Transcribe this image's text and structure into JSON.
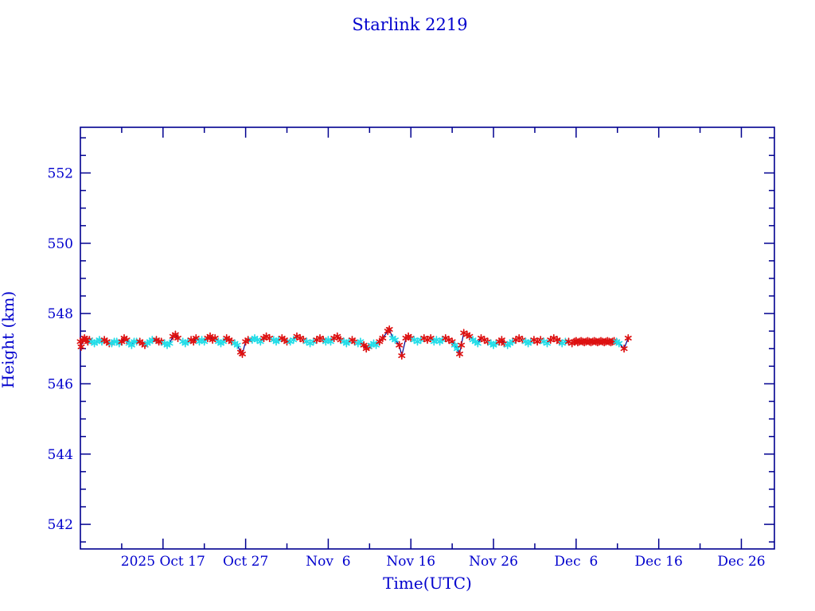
{
  "page": {
    "background_color": "#ffffff"
  },
  "chart_data": {
    "type": "line",
    "title": "Starlink 2219",
    "xlabel": "Time(UTC)",
    "ylabel": "Height (km)",
    "x_axis_note": "days since 2025 Oct 7 00:00 UTC",
    "xlim": [
      0,
      84
    ],
    "ylim": [
      541.3,
      553.3
    ],
    "grid": false,
    "legend": "none",
    "x_major_ticks": [
      {
        "t": 10,
        "label": "2025 Oct 17"
      },
      {
        "t": 20,
        "label": "Oct 27"
      },
      {
        "t": 30,
        "label": "Nov  6"
      },
      {
        "t": 40,
        "label": "Nov 16"
      },
      {
        "t": 50,
        "label": "Nov 26"
      },
      {
        "t": 60,
        "label": "Dec  6"
      },
      {
        "t": 70,
        "label": "Dec 16"
      },
      {
        "t": 80,
        "label": "Dec 26"
      }
    ],
    "x_minor_step_days": 5,
    "y_major_ticks": [
      542,
      544,
      546,
      548,
      550,
      552
    ],
    "y_minor_step": 0.5,
    "colors": {
      "axis": "#000090",
      "text": "#0000cd",
      "line": "#00008b",
      "marker_red": "#dd1111",
      "marker_cyan": "#22dde8"
    },
    "marker_glyph": "asterisk",
    "series_legend": [
      {
        "name": "height-obs-red",
        "color": "#dd1111"
      },
      {
        "name": "height-obs-cyan",
        "color": "#22dde8"
      }
    ],
    "points": [
      [
        0.0,
        547.2,
        "r"
      ],
      [
        0.1,
        547.05,
        "r"
      ],
      [
        0.3,
        547.25,
        "r"
      ],
      [
        0.5,
        547.3,
        "r"
      ],
      [
        0.7,
        547.25,
        "r"
      ],
      [
        0.9,
        547.2,
        "r"
      ],
      [
        1.1,
        547.25,
        "r"
      ],
      [
        1.4,
        547.2,
        "c"
      ],
      [
        1.7,
        547.15,
        "c"
      ],
      [
        2.0,
        547.2,
        "c"
      ],
      [
        2.3,
        547.25,
        "c"
      ],
      [
        2.6,
        547.2,
        "c"
      ],
      [
        2.9,
        547.25,
        "r"
      ],
      [
        3.2,
        547.2,
        "r"
      ],
      [
        3.5,
        547.15,
        "r"
      ],
      [
        3.8,
        547.15,
        "c"
      ],
      [
        4.1,
        547.2,
        "c"
      ],
      [
        4.4,
        547.2,
        "c"
      ],
      [
        4.7,
        547.15,
        "c"
      ],
      [
        5.0,
        547.2,
        "r"
      ],
      [
        5.3,
        547.3,
        "r"
      ],
      [
        5.6,
        547.25,
        "r"
      ],
      [
        5.9,
        547.15,
        "c"
      ],
      [
        6.2,
        547.1,
        "c"
      ],
      [
        6.5,
        547.2,
        "c"
      ],
      [
        6.8,
        547.2,
        "c"
      ],
      [
        7.2,
        547.2,
        "r"
      ],
      [
        7.5,
        547.15,
        "r"
      ],
      [
        7.8,
        547.1,
        "r"
      ],
      [
        8.1,
        547.15,
        "c"
      ],
      [
        8.4,
        547.2,
        "c"
      ],
      [
        8.7,
        547.25,
        "c"
      ],
      [
        9.2,
        547.25,
        "r"
      ],
      [
        9.5,
        547.2,
        "r"
      ],
      [
        9.8,
        547.2,
        "r"
      ],
      [
        10.2,
        547.15,
        "c"
      ],
      [
        10.5,
        547.1,
        "c"
      ],
      [
        10.8,
        547.15,
        "c"
      ],
      [
        11.2,
        547.35,
        "r"
      ],
      [
        11.5,
        547.4,
        "r"
      ],
      [
        11.8,
        547.3,
        "r"
      ],
      [
        12.4,
        547.2,
        "c"
      ],
      [
        12.7,
        547.15,
        "c"
      ],
      [
        13.0,
        547.2,
        "c"
      ],
      [
        13.4,
        547.25,
        "r"
      ],
      [
        13.7,
        547.2,
        "r"
      ],
      [
        14.0,
        547.3,
        "r"
      ],
      [
        14.4,
        547.2,
        "c"
      ],
      [
        14.7,
        547.25,
        "c"
      ],
      [
        15.0,
        547.2,
        "c"
      ],
      [
        15.4,
        547.3,
        "r"
      ],
      [
        15.7,
        547.35,
        "r"
      ],
      [
        16.0,
        547.25,
        "r"
      ],
      [
        16.3,
        547.3,
        "r"
      ],
      [
        16.7,
        547.2,
        "c"
      ],
      [
        17.0,
        547.15,
        "c"
      ],
      [
        17.3,
        547.2,
        "c"
      ],
      [
        17.7,
        547.3,
        "r"
      ],
      [
        18.0,
        547.25,
        "r"
      ],
      [
        18.3,
        547.2,
        "r"
      ],
      [
        18.7,
        547.15,
        "c"
      ],
      [
        19.0,
        547.1,
        "c"
      ],
      [
        19.4,
        546.9,
        "r"
      ],
      [
        19.6,
        546.85,
        "r"
      ],
      [
        20.0,
        547.2,
        "r"
      ],
      [
        20.3,
        547.25,
        "r"
      ],
      [
        20.8,
        547.25,
        "c"
      ],
      [
        21.1,
        547.3,
        "c"
      ],
      [
        21.4,
        547.25,
        "c"
      ],
      [
        21.8,
        547.2,
        "c"
      ],
      [
        22.2,
        547.3,
        "r"
      ],
      [
        22.5,
        547.35,
        "r"
      ],
      [
        22.9,
        547.3,
        "r"
      ],
      [
        23.4,
        547.25,
        "c"
      ],
      [
        23.7,
        547.2,
        "c"
      ],
      [
        24.0,
        547.25,
        "c"
      ],
      [
        24.4,
        547.3,
        "r"
      ],
      [
        24.7,
        547.25,
        "r"
      ],
      [
        25.0,
        547.2,
        "r"
      ],
      [
        25.4,
        547.2,
        "c"
      ],
      [
        25.8,
        547.25,
        "c"
      ],
      [
        26.2,
        547.35,
        "r"
      ],
      [
        26.6,
        547.3,
        "r"
      ],
      [
        27.0,
        547.25,
        "r"
      ],
      [
        27.4,
        547.2,
        "c"
      ],
      [
        27.8,
        547.15,
        "c"
      ],
      [
        28.2,
        547.2,
        "c"
      ],
      [
        28.6,
        547.25,
        "r"
      ],
      [
        29.0,
        547.3,
        "r"
      ],
      [
        29.4,
        547.25,
        "r"
      ],
      [
        29.7,
        547.2,
        "c"
      ],
      [
        30.0,
        547.25,
        "c"
      ],
      [
        30.3,
        547.2,
        "c"
      ],
      [
        30.7,
        547.3,
        "r"
      ],
      [
        31.1,
        547.35,
        "r"
      ],
      [
        31.5,
        547.25,
        "r"
      ],
      [
        31.9,
        547.2,
        "c"
      ],
      [
        32.2,
        547.15,
        "c"
      ],
      [
        32.5,
        547.2,
        "c"
      ],
      [
        32.9,
        547.25,
        "r"
      ],
      [
        33.2,
        547.2,
        "r"
      ],
      [
        33.6,
        547.15,
        "c"
      ],
      [
        33.9,
        547.2,
        "c"
      ],
      [
        34.3,
        547.1,
        "r"
      ],
      [
        34.6,
        547.0,
        "r"
      ],
      [
        34.9,
        547.05,
        "r"
      ],
      [
        35.2,
        547.1,
        "c"
      ],
      [
        35.5,
        547.15,
        "c"
      ],
      [
        35.8,
        547.1,
        "c"
      ],
      [
        36.2,
        547.2,
        "r"
      ],
      [
        36.6,
        547.3,
        "r"
      ],
      [
        37.2,
        547.5,
        "r"
      ],
      [
        37.4,
        547.55,
        "r"
      ],
      [
        37.8,
        547.3,
        "c"
      ],
      [
        38.1,
        547.25,
        "c"
      ],
      [
        38.6,
        547.1,
        "r"
      ],
      [
        38.9,
        546.8,
        "r"
      ],
      [
        39.4,
        547.3,
        "r"
      ],
      [
        39.7,
        547.35,
        "r"
      ],
      [
        40.0,
        547.3,
        "r"
      ],
      [
        40.4,
        547.25,
        "c"
      ],
      [
        40.8,
        547.2,
        "c"
      ],
      [
        41.2,
        547.25,
        "c"
      ],
      [
        41.6,
        547.3,
        "r"
      ],
      [
        42.0,
        547.25,
        "r"
      ],
      [
        42.4,
        547.3,
        "r"
      ],
      [
        42.8,
        547.2,
        "c"
      ],
      [
        43.1,
        547.25,
        "c"
      ],
      [
        43.5,
        547.2,
        "c"
      ],
      [
        43.8,
        547.25,
        "c"
      ],
      [
        44.2,
        547.3,
        "r"
      ],
      [
        44.6,
        547.25,
        "r"
      ],
      [
        45.0,
        547.2,
        "r"
      ],
      [
        45.3,
        547.1,
        "c"
      ],
      [
        45.6,
        547.0,
        "c"
      ],
      [
        45.9,
        546.85,
        "r"
      ],
      [
        46.1,
        547.1,
        "r"
      ],
      [
        46.4,
        547.45,
        "r"
      ],
      [
        46.8,
        547.4,
        "r"
      ],
      [
        47.1,
        547.35,
        "r"
      ],
      [
        47.5,
        547.25,
        "c"
      ],
      [
        47.8,
        547.2,
        "c"
      ],
      [
        48.1,
        547.15,
        "c"
      ],
      [
        48.5,
        547.3,
        "r"
      ],
      [
        48.9,
        547.25,
        "r"
      ],
      [
        49.3,
        547.2,
        "r"
      ],
      [
        49.7,
        547.15,
        "c"
      ],
      [
        50.0,
        547.1,
        "c"
      ],
      [
        50.3,
        547.15,
        "c"
      ],
      [
        50.7,
        547.2,
        "r"
      ],
      [
        51.0,
        547.25,
        "r"
      ],
      [
        51.3,
        547.15,
        "r"
      ],
      [
        51.7,
        547.1,
        "c"
      ],
      [
        52.0,
        547.15,
        "c"
      ],
      [
        52.3,
        547.2,
        "c"
      ],
      [
        52.7,
        547.25,
        "r"
      ],
      [
        53.1,
        547.3,
        "r"
      ],
      [
        53.5,
        547.25,
        "r"
      ],
      [
        53.9,
        547.2,
        "c"
      ],
      [
        54.2,
        547.15,
        "c"
      ],
      [
        54.5,
        547.2,
        "c"
      ],
      [
        54.9,
        547.25,
        "r"
      ],
      [
        55.3,
        547.2,
        "r"
      ],
      [
        55.7,
        547.25,
        "r"
      ],
      [
        56.1,
        547.2,
        "c"
      ],
      [
        56.5,
        547.15,
        "c"
      ],
      [
        56.9,
        547.25,
        "r"
      ],
      [
        57.3,
        547.3,
        "r"
      ],
      [
        57.7,
        547.25,
        "r"
      ],
      [
        58.0,
        547.2,
        "r"
      ],
      [
        58.3,
        547.15,
        "c"
      ],
      [
        58.7,
        547.2,
        "c"
      ],
      [
        59.1,
        547.2,
        "r"
      ],
      [
        59.5,
        547.15,
        "r"
      ],
      [
        59.8,
        547.2,
        "r"
      ],
      [
        60.0,
        547.22,
        "r"
      ],
      [
        60.2,
        547.18,
        "r"
      ],
      [
        60.4,
        547.2,
        "r"
      ],
      [
        60.6,
        547.22,
        "r"
      ],
      [
        60.8,
        547.2,
        "r"
      ],
      [
        61.0,
        547.18,
        "r"
      ],
      [
        61.2,
        547.2,
        "r"
      ],
      [
        61.4,
        547.22,
        "r"
      ],
      [
        61.6,
        547.2,
        "r"
      ],
      [
        61.8,
        547.18,
        "r"
      ],
      [
        62.0,
        547.2,
        "r"
      ],
      [
        62.2,
        547.22,
        "r"
      ],
      [
        62.4,
        547.2,
        "r"
      ],
      [
        62.6,
        547.18,
        "r"
      ],
      [
        62.8,
        547.2,
        "r"
      ],
      [
        63.0,
        547.22,
        "r"
      ],
      [
        63.2,
        547.2,
        "r"
      ],
      [
        63.4,
        547.18,
        "r"
      ],
      [
        63.6,
        547.2,
        "r"
      ],
      [
        63.8,
        547.22,
        "r"
      ],
      [
        64.0,
        547.2,
        "r"
      ],
      [
        64.2,
        547.18,
        "r"
      ],
      [
        64.4,
        547.2,
        "r"
      ],
      [
        64.6,
        547.22,
        "r"
      ],
      [
        64.9,
        547.2,
        "c"
      ],
      [
        65.2,
        547.15,
        "c"
      ],
      [
        65.8,
        547.0,
        "r"
      ],
      [
        66.3,
        547.3,
        "r"
      ]
    ]
  }
}
